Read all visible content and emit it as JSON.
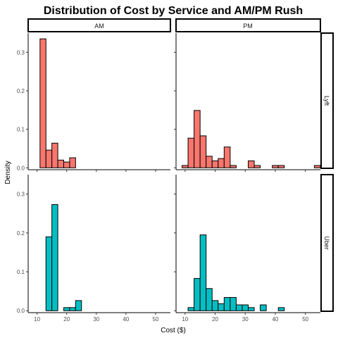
{
  "chart_data": {
    "type": "bar",
    "title": "Distribution of Cost by Service and AM/PM Rush",
    "xlabel": "Cost ($)",
    "ylabel": "Density",
    "xlim": [
      7,
      55
    ],
    "ylim": [
      -0.005,
      0.35
    ],
    "x_ticks": [
      10,
      20,
      30,
      40,
      50
    ],
    "y_ticks": [
      0.0,
      0.1,
      0.2,
      0.3
    ],
    "x_tick_labels": [
      "10",
      "20",
      "30",
      "40",
      "50"
    ],
    "y_tick_labels": [
      "0.0",
      "0.1",
      "0.2",
      "0.3"
    ],
    "bin_width": 2,
    "col_facets": [
      "AM",
      "PM"
    ],
    "row_facets": [
      "Lyft",
      "Uber"
    ],
    "colors": {
      "Lyft": "#F8766D",
      "Uber": "#00BFC4"
    },
    "grid": false,
    "panels": [
      {
        "service": "Lyft",
        "rush": "AM",
        "bins": [
          {
            "x0": 11,
            "x1": 13,
            "density": 0.335
          },
          {
            "x0": 13,
            "x1": 15,
            "density": 0.046
          },
          {
            "x0": 15,
            "x1": 17,
            "density": 0.064
          },
          {
            "x0": 17,
            "x1": 19,
            "density": 0.02
          },
          {
            "x0": 19,
            "x1": 21,
            "density": 0.015
          },
          {
            "x0": 21,
            "x1": 23,
            "density": 0.026
          }
        ]
      },
      {
        "service": "Lyft",
        "rush": "PM",
        "bins": [
          {
            "x0": 9,
            "x1": 11,
            "density": 0.006
          },
          {
            "x0": 11,
            "x1": 13,
            "density": 0.077
          },
          {
            "x0": 13,
            "x1": 15,
            "density": 0.149
          },
          {
            "x0": 15,
            "x1": 17,
            "density": 0.083
          },
          {
            "x0": 17,
            "x1": 19,
            "density": 0.03
          },
          {
            "x0": 19,
            "x1": 21,
            "density": 0.018
          },
          {
            "x0": 21,
            "x1": 23,
            "density": 0.024
          },
          {
            "x0": 23,
            "x1": 25,
            "density": 0.054
          },
          {
            "x0": 25,
            "x1": 27,
            "density": 0.006
          },
          {
            "x0": 27,
            "x1": 29,
            "density": 0.0
          },
          {
            "x0": 29,
            "x1": 31,
            "density": 0.0
          },
          {
            "x0": 31,
            "x1": 33,
            "density": 0.018
          },
          {
            "x0": 33,
            "x1": 35,
            "density": 0.006
          },
          {
            "x0": 35,
            "x1": 37,
            "density": 0.0
          },
          {
            "x0": 37,
            "x1": 39,
            "density": 0.0
          },
          {
            "x0": 39,
            "x1": 41,
            "density": 0.006
          },
          {
            "x0": 41,
            "x1": 43,
            "density": 0.006
          },
          {
            "x0": 43,
            "x1": 45,
            "density": 0.0
          },
          {
            "x0": 45,
            "x1": 47,
            "density": 0.0
          },
          {
            "x0": 47,
            "x1": 49,
            "density": 0.0
          },
          {
            "x0": 49,
            "x1": 51,
            "density": 0.0
          },
          {
            "x0": 51,
            "x1": 53,
            "density": 0.0
          },
          {
            "x0": 53,
            "x1": 55,
            "density": 0.006
          }
        ]
      },
      {
        "service": "Uber",
        "rush": "AM",
        "bins": [
          {
            "x0": 13,
            "x1": 15,
            "density": 0.19
          },
          {
            "x0": 15,
            "x1": 17,
            "density": 0.273
          },
          {
            "x0": 17,
            "x1": 19,
            "density": 0.0
          },
          {
            "x0": 19,
            "x1": 21,
            "density": 0.008
          },
          {
            "x0": 21,
            "x1": 23,
            "density": 0.008
          },
          {
            "x0": 23,
            "x1": 25,
            "density": 0.026
          }
        ]
      },
      {
        "service": "Uber",
        "rush": "PM",
        "bins": [
          {
            "x0": 11,
            "x1": 13,
            "density": 0.008
          },
          {
            "x0": 13,
            "x1": 15,
            "density": 0.083
          },
          {
            "x0": 15,
            "x1": 17,
            "density": 0.195
          },
          {
            "x0": 17,
            "x1": 19,
            "density": 0.057
          },
          {
            "x0": 19,
            "x1": 21,
            "density": 0.026
          },
          {
            "x0": 21,
            "x1": 23,
            "density": 0.018
          },
          {
            "x0": 23,
            "x1": 25,
            "density": 0.034
          },
          {
            "x0": 25,
            "x1": 27,
            "density": 0.034
          },
          {
            "x0": 27,
            "x1": 29,
            "density": 0.015
          },
          {
            "x0": 29,
            "x1": 31,
            "density": 0.015
          },
          {
            "x0": 31,
            "x1": 33,
            "density": 0.008
          },
          {
            "x0": 33,
            "x1": 35,
            "density": 0.0
          },
          {
            "x0": 35,
            "x1": 37,
            "density": 0.015
          },
          {
            "x0": 37,
            "x1": 39,
            "density": 0.0
          },
          {
            "x0": 39,
            "x1": 41,
            "density": 0.0
          },
          {
            "x0": 41,
            "x1": 43,
            "density": 0.008
          }
        ]
      }
    ]
  }
}
